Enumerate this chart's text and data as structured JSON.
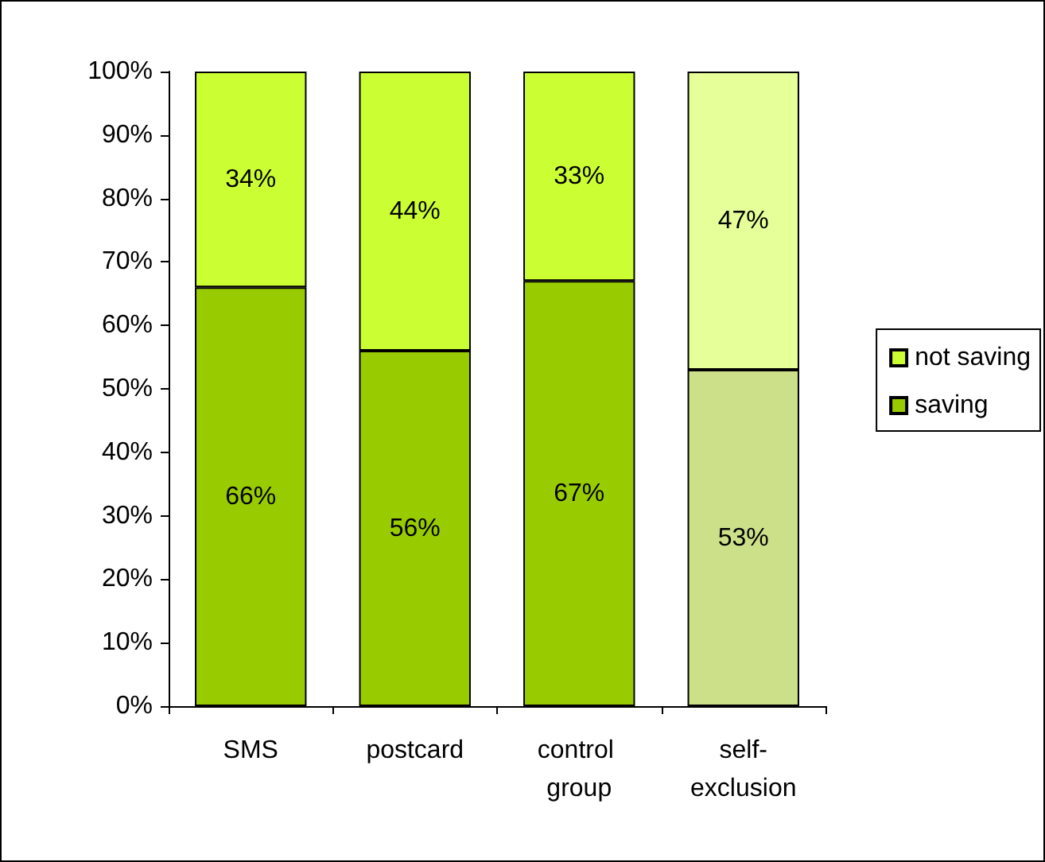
{
  "chart_data": {
    "type": "bar",
    "stacked": true,
    "categories": [
      "SMS",
      "postcard",
      "control group",
      "self-exclusion"
    ],
    "series": [
      {
        "name": "saving",
        "color": "#99cc00",
        "colors": [
          "#99cc00",
          "#99cc00",
          "#99cc00",
          "#cce08a"
        ],
        "values": [
          66,
          56,
          67,
          53
        ],
        "value_labels": [
          "66%",
          "56%",
          "67%",
          "53%"
        ]
      },
      {
        "name": "not saving",
        "color": "#ccff33",
        "colors": [
          "#ccff33",
          "#ccff33",
          "#ccff33",
          "#e6ff99"
        ],
        "values": [
          34,
          44,
          33,
          47
        ],
        "value_labels": [
          "34%",
          "44%",
          "33%",
          "47%"
        ]
      }
    ],
    "ylim": [
      0,
      100
    ],
    "yticks": [
      {
        "value": 0,
        "label": "0%"
      },
      {
        "value": 10,
        "label": "10%"
      },
      {
        "value": 20,
        "label": "20%"
      },
      {
        "value": 30,
        "label": "30%"
      },
      {
        "value": 40,
        "label": "40%"
      },
      {
        "value": 50,
        "label": "50%"
      },
      {
        "value": 60,
        "label": "60%"
      },
      {
        "value": 70,
        "label": "70%"
      },
      {
        "value": 80,
        "label": "80%"
      },
      {
        "value": 90,
        "label": "90%"
      },
      {
        "value": 100,
        "label": "100%"
      }
    ],
    "grid": false,
    "legend": "right"
  }
}
